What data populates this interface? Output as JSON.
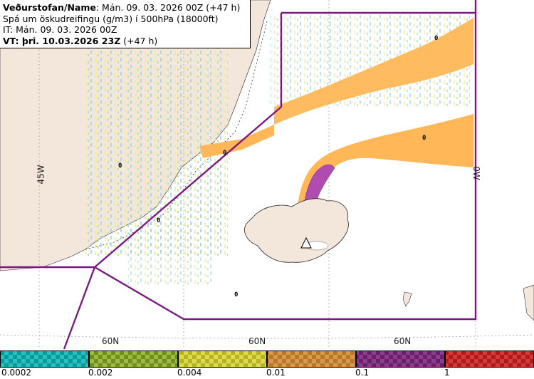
{
  "header": {
    "line1_bold": "Veðurstofan/Name",
    "line1_rest": ": Mán. 09. 03. 2026 00Z (+47 h)",
    "line2": "Spá um öskudreifingu (g/m3) í 500hPa (18000ft)",
    "line3": "IT: Mán. 09. 03. 2026 00Z",
    "line4_bold": "VT: þri. 10.03.2026 23Z",
    "line4_rest": " (+47 h)"
  },
  "grid_labels": {
    "lon_left": "45W",
    "lon_right": "0W",
    "lat": [
      "60N",
      "60N",
      "60N"
    ]
  },
  "zero_markers": [
    "0",
    "0",
    "0",
    "0",
    "0",
    "0"
  ],
  "legend": {
    "thresholds": [
      "0.0002",
      "0.002",
      "0.004",
      "0.01",
      "0.1",
      "1"
    ],
    "colors": [
      "#27c1c1",
      "#8fae33",
      "#d3d23a",
      "#cf8d3b",
      "#7e2f7e",
      "#cc2a2a"
    ]
  },
  "colors": {
    "land": "#f3e6db",
    "sea": "#ffffff",
    "boundary": "#7a1a80",
    "ash_low": "#ffb757",
    "ash_high": "#b04cb0"
  }
}
